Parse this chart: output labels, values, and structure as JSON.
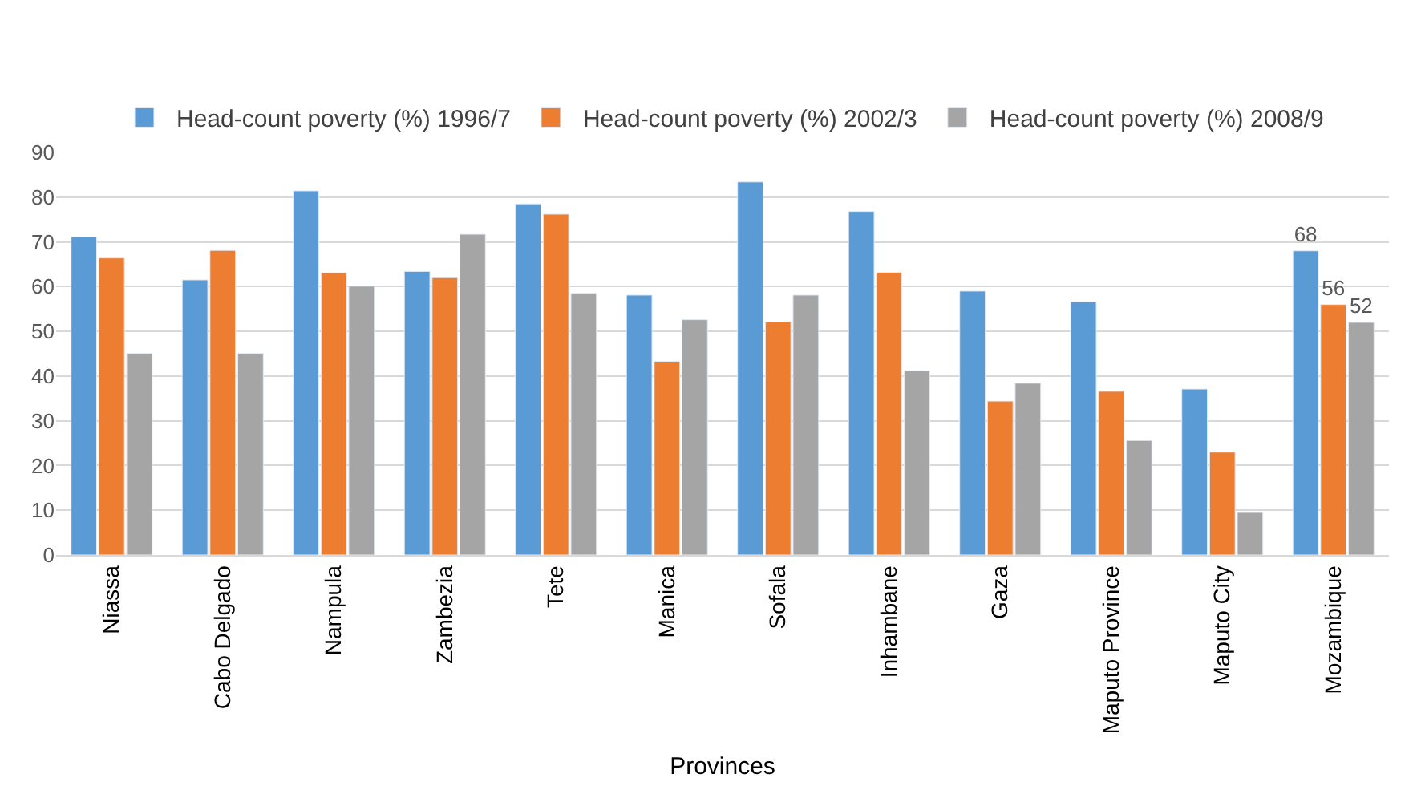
{
  "chart_data": {
    "type": "bar",
    "xlabel": "Provinces",
    "categories": [
      "Niassa",
      "Cabo Delgado",
      "Nampula",
      "Zambezia",
      "Tete",
      "Manica",
      "Sofala",
      "Inhambane",
      "Gaza",
      "Maputo Province",
      "Maputo City",
      "Mozambique"
    ],
    "series": [
      {
        "name": "Head-count poverty (%) 1996/7",
        "color": "#5b9bd5",
        "values": [
          71.1,
          61.5,
          81.4,
          63.4,
          78.5,
          58.1,
          83.4,
          76.8,
          59.0,
          56.6,
          37.1,
          68
        ],
        "value_labels": [
          null,
          null,
          null,
          null,
          null,
          null,
          null,
          null,
          null,
          null,
          null,
          "68"
        ]
      },
      {
        "name": "Head-count poverty (%) 2002/3",
        "color": "#ed7d31",
        "values": [
          66.4,
          68.1,
          63.1,
          62.0,
          76.2,
          43.3,
          52.1,
          63.2,
          34.4,
          36.6,
          23.0,
          56
        ],
        "value_labels": [
          null,
          null,
          null,
          null,
          null,
          null,
          null,
          null,
          null,
          null,
          null,
          "56"
        ]
      },
      {
        "name": "Head-count poverty (%) 2008/9",
        "color": "#a5a5a5",
        "values": [
          45.1,
          45.1,
          60.1,
          71.7,
          58.5,
          52.6,
          58.1,
          41.2,
          38.4,
          25.6,
          9.5,
          52
        ],
        "value_labels": [
          null,
          null,
          null,
          null,
          null,
          null,
          null,
          null,
          null,
          null,
          null,
          "52"
        ]
      }
    ],
    "ylim": [
      0,
      90
    ],
    "yticks": [
      0,
      10,
      20,
      30,
      40,
      50,
      60,
      70,
      80,
      90
    ],
    "grid": "y",
    "legend": "top"
  }
}
